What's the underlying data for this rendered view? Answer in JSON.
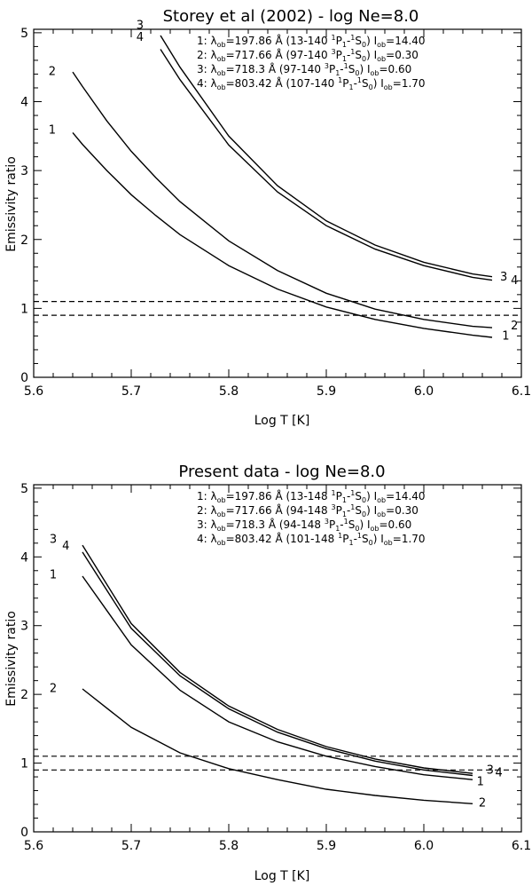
{
  "charts": [
    {
      "title": "Storey et al (2002) - log Ne=8.0",
      "xlabel": "Log T [K]",
      "ylabel": "Emissivity ratio",
      "legend": [
        {
          "num": "1:",
          "lam": "λ",
          "ob": "ob",
          "val": "=197.86 Å (13-140 ",
          "l1": "1",
          "p": "P",
          "s1": "1",
          "dash": "-",
          "l2": "1",
          "s": "S",
          "s2": "0",
          "close": ")",
          "I": "I",
          "iob": "ob",
          "ival": "=14.40"
        },
        {
          "num": "2:",
          "lam": "λ",
          "ob": "ob",
          "val": "=717.66 Å (97-140 ",
          "l1": "3",
          "p": "P",
          "s1": "1",
          "dash": "-",
          "l2": "1",
          "s": "S",
          "s2": "0",
          "close": ")",
          "I": "I",
          "iob": "ob",
          "ival": "=0.30"
        },
        {
          "num": "3:",
          "lam": "λ",
          "ob": "ob",
          "val": "=718.3 Å (97-140 ",
          "l1": "3",
          "p": "P",
          "s1": "1",
          "dash": "-",
          "l2": "1",
          "s": "S",
          "s2": "0",
          "close": ")",
          "I": "I",
          "iob": "ob",
          "ival": "=0.60"
        },
        {
          "num": "4:",
          "lam": "λ",
          "ob": "ob",
          "val": "=803.42 Å (107-140 ",
          "l1": "1",
          "p": "P",
          "s1": "1",
          "dash": "-",
          "l2": "1",
          "s": "S",
          "s2": "0",
          "close": ")",
          "I": "I",
          "iob": "ob",
          "ival": "=1.70"
        }
      ]
    },
    {
      "title": "Present data - log Ne=8.0",
      "xlabel": "Log T [K]",
      "ylabel": "Emissivity ratio",
      "legend": [
        {
          "num": "1:",
          "lam": "λ",
          "ob": "ob",
          "val": "=197.86 Å (13-148 ",
          "l1": "1",
          "p": "P",
          "s1": "1",
          "dash": "-",
          "l2": "1",
          "s": "S",
          "s2": "0",
          "close": ")",
          "I": "I",
          "iob": "ob",
          "ival": "=14.40"
        },
        {
          "num": "2:",
          "lam": "λ",
          "ob": "ob",
          "val": "=717.66 Å (94-148 ",
          "l1": "3",
          "p": "P",
          "s1": "1",
          "dash": "-",
          "l2": "1",
          "s": "S",
          "s2": "0",
          "close": ")",
          "I": "I",
          "iob": "ob",
          "ival": "=0.30"
        },
        {
          "num": "3:",
          "lam": "λ",
          "ob": "ob",
          "val": "=718.3 Å (94-148 ",
          "l1": "3",
          "p": "P",
          "s1": "1",
          "dash": "-",
          "l2": "1",
          "s": "S",
          "s2": "0",
          "close": ")",
          "I": "I",
          "iob": "ob",
          "ival": "=0.60"
        },
        {
          "num": "4:",
          "lam": "λ",
          "ob": "ob",
          "val": "=803.42 Å (101-148 ",
          "l1": "1",
          "p": "P",
          "s1": "1",
          "dash": "-",
          "l2": "1",
          "s": "S",
          "s2": "0",
          "close": ")",
          "I": "I",
          "iob": "ob",
          "ival": "=1.70"
        }
      ]
    }
  ],
  "chart_data": [
    {
      "type": "line",
      "title": "Storey et al (2002) - log Ne=8.0",
      "xlabel": "Log T [K]",
      "ylabel": "Emissivity ratio",
      "xlim": [
        5.6,
        6.1
      ],
      "ylim": [
        0,
        5.05
      ],
      "xticks": [
        5.6,
        5.7,
        5.8,
        5.9,
        6.0,
        6.1
      ],
      "xtick_labels": [
        "5.6",
        "5.7",
        "5.8",
        "5.9",
        "6.0",
        "6.1"
      ],
      "yticks": [
        0,
        1,
        2,
        3,
        4,
        5
      ],
      "ytick_labels": [
        "0",
        "1",
        "2",
        "3",
        "4",
        "5"
      ],
      "hlines": [
        0.9,
        1.1
      ],
      "series": [
        {
          "name": "1",
          "x": [
            5.64,
            5.65,
            5.675,
            5.7,
            5.725,
            5.75,
            5.8,
            5.85,
            5.9,
            5.95,
            6.0,
            6.05,
            6.07
          ],
          "y": [
            3.55,
            3.38,
            3.0,
            2.65,
            2.35,
            2.07,
            1.62,
            1.28,
            1.02,
            0.84,
            0.71,
            0.61,
            0.58
          ]
        },
        {
          "name": "2",
          "x": [
            5.64,
            5.65,
            5.675,
            5.7,
            5.725,
            5.75,
            5.8,
            5.85,
            5.9,
            5.95,
            6.0,
            6.05,
            6.07
          ],
          "y": [
            4.43,
            4.22,
            3.72,
            3.28,
            2.9,
            2.55,
            1.98,
            1.55,
            1.22,
            0.99,
            0.84,
            0.74,
            0.72
          ]
        },
        {
          "name": "3",
          "x": [
            5.73,
            5.75,
            5.8,
            5.85,
            5.9,
            5.95,
            6.0,
            6.05,
            6.07
          ],
          "y": [
            4.96,
            4.5,
            3.5,
            2.78,
            2.27,
            1.92,
            1.67,
            1.5,
            1.46
          ]
        },
        {
          "name": "4",
          "x": [
            5.73,
            5.75,
            5.8,
            5.85,
            5.9,
            5.95,
            6.0,
            6.05,
            6.07
          ],
          "y": [
            4.76,
            4.32,
            3.37,
            2.69,
            2.2,
            1.86,
            1.62,
            1.45,
            1.41
          ]
        }
      ],
      "curve_labels": [
        {
          "series": "1",
          "text": "1",
          "x": 5.619,
          "y": 3.6
        },
        {
          "series": "2",
          "x": 5.619,
          "y": 4.45,
          "text": "2"
        },
        {
          "series": "3",
          "text": "3",
          "x": 6.082,
          "y": 1.47
        },
        {
          "series": "4",
          "text": "4",
          "x": 6.093,
          "y": 1.42
        },
        {
          "series": "1",
          "text": "1",
          "x": 6.084,
          "y": 0.61
        },
        {
          "series": "2",
          "text": "2",
          "x": 6.093,
          "y": 0.76
        },
        {
          "series": "3",
          "text": "3",
          "x": 5.709,
          "y": 5.12
        },
        {
          "series": "4",
          "text": "4",
          "x": 5.709,
          "y": 4.95
        }
      ]
    },
    {
      "type": "line",
      "title": "Present data - log Ne=8.0",
      "xlabel": "Log T [K]",
      "ylabel": "Emissivity ratio",
      "xlim": [
        5.6,
        6.1
      ],
      "ylim": [
        0,
        5.05
      ],
      "xticks": [
        5.6,
        5.7,
        5.8,
        5.9,
        6.0,
        6.1
      ],
      "xtick_labels": [
        "5.6",
        "5.7",
        "5.8",
        "5.9",
        "6.0",
        "6.1"
      ],
      "yticks": [
        0,
        1,
        2,
        3,
        4,
        5
      ],
      "ytick_labels": [
        "0",
        "1",
        "2",
        "3",
        "4",
        "5"
      ],
      "hlines": [
        0.9,
        1.1
      ],
      "series": [
        {
          "name": "1",
          "x": [
            5.65,
            5.7,
            5.75,
            5.8,
            5.85,
            5.9,
            5.95,
            6.0,
            6.05
          ],
          "y": [
            3.72,
            2.72,
            2.06,
            1.6,
            1.31,
            1.1,
            0.95,
            0.83,
            0.76
          ]
        },
        {
          "name": "2",
          "x": [
            5.65,
            5.7,
            5.75,
            5.8,
            5.85,
            5.9,
            5.95,
            6.0,
            6.05
          ],
          "y": [
            2.08,
            1.52,
            1.15,
            0.92,
            0.76,
            0.62,
            0.53,
            0.46,
            0.41
          ]
        },
        {
          "name": "3",
          "x": [
            5.65,
            5.7,
            5.75,
            5.8,
            5.85,
            5.9,
            5.95,
            6.0,
            6.05
          ],
          "y": [
            4.17,
            3.03,
            2.32,
            1.83,
            1.49,
            1.24,
            1.06,
            0.93,
            0.85
          ]
        },
        {
          "name": "4",
          "x": [
            5.65,
            5.7,
            5.75,
            5.8,
            5.85,
            5.9,
            5.95,
            6.0,
            6.05
          ],
          "y": [
            4.07,
            2.96,
            2.27,
            1.79,
            1.45,
            1.21,
            1.03,
            0.9,
            0.82
          ]
        }
      ],
      "curve_labels": [
        {
          "series": "3",
          "text": "3",
          "x": 5.62,
          "y": 4.27
        },
        {
          "series": "4",
          "text": "4",
          "x": 5.633,
          "y": 4.17
        },
        {
          "series": "1",
          "text": "1",
          "x": 5.62,
          "y": 3.75
        },
        {
          "series": "2",
          "text": "2",
          "x": 5.62,
          "y": 2.1
        },
        {
          "series": "3",
          "text": "3",
          "x": 6.068,
          "y": 0.91
        },
        {
          "series": "4",
          "text": "4",
          "x": 6.077,
          "y": 0.87
        },
        {
          "series": "1",
          "text": "1",
          "x": 6.058,
          "y": 0.74
        },
        {
          "series": "2",
          "text": "2",
          "x": 6.06,
          "y": 0.43
        }
      ]
    }
  ]
}
